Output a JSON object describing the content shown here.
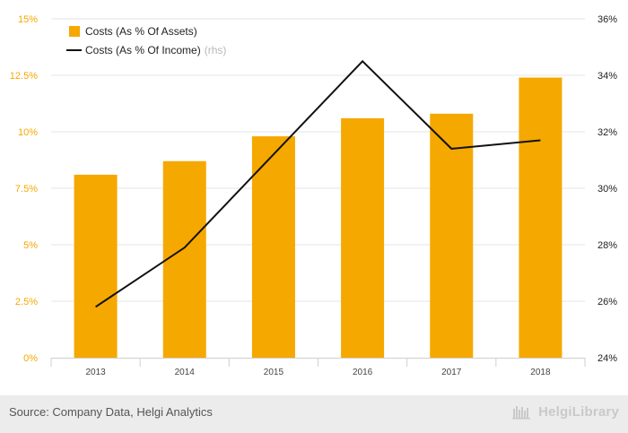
{
  "chart_data": {
    "type": "bar",
    "categories": [
      "2013",
      "2014",
      "2015",
      "2016",
      "2017",
      "2018"
    ],
    "series": [
      {
        "name": "Costs (As % Of Assets)",
        "type": "bar",
        "axis": "left",
        "color": "#f5a800",
        "values": [
          8.1,
          8.7,
          9.8,
          10.6,
          10.8,
          12.4
        ]
      },
      {
        "name": "Costs (As % Of Income)",
        "type": "line",
        "axis": "right",
        "color": "#111111",
        "values": [
          25.8,
          27.9,
          31.2,
          34.5,
          31.4,
          31.7
        ]
      }
    ],
    "y_left": {
      "range": [
        0,
        15
      ],
      "ticks": [
        0,
        2.5,
        5,
        7.5,
        10,
        12.5,
        15
      ],
      "tick_labels": [
        "0%",
        "2.5%",
        "5%",
        "7.5%",
        "10%",
        "12.5%",
        "15%"
      ]
    },
    "y_right": {
      "range": [
        24,
        36
      ],
      "ticks": [
        24,
        26,
        28,
        30,
        32,
        34,
        36
      ],
      "tick_labels": [
        "24%",
        "26%",
        "28%",
        "30%",
        "32%",
        "34%",
        "36%"
      ]
    },
    "legend": {
      "placement": "top-left",
      "items": [
        {
          "label": "Costs (As % Of Assets)",
          "suffix": ""
        },
        {
          "label": "Costs (As % Of Income)",
          "suffix": "(rhs)"
        }
      ]
    },
    "grid": true
  },
  "footer": {
    "source": "Source: Company Data, Helgi Analytics",
    "brand": "HelgiLibrary"
  }
}
